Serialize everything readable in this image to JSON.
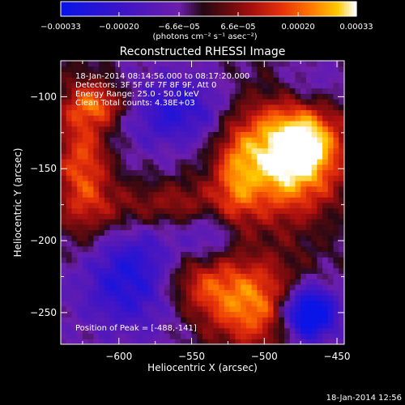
{
  "chart_data": {
    "type": "heatmap",
    "title": "Reconstructed RHESSI Image",
    "xlabel": "Heliocentric X (arcsec)",
    "ylabel": "Heliocentric Y (arcsec)",
    "xlim": [
      -640,
      -445
    ],
    "ylim": [
      -272,
      -75
    ],
    "x_ticks": [
      -600,
      -550,
      -500,
      -450
    ],
    "x_tick_labels": [
      "−600",
      "−550",
      "−500",
      "−450"
    ],
    "y_ticks": [
      -100,
      -150,
      -200,
      -250
    ],
    "y_tick_labels": [
      "−100",
      "−150",
      "−200",
      "−250"
    ],
    "colorbar": {
      "range": [
        -0.00033,
        0.00033
      ],
      "tick_labels": [
        "−0.00033",
        "−0.00020",
        "−6.6e−05",
        "6.6e−05",
        "0.00020",
        "0.00033"
      ],
      "unit_label": "(photons cm⁻² s⁻¹ asec⁻²)",
      "colors": [
        "#0a14e6",
        "#3a10c8",
        "#6a1aa8",
        "#2a0810",
        "#5a0a10",
        "#a01010",
        "#e03010",
        "#ff7000",
        "#ffc000",
        "#ffffff"
      ]
    },
    "annotations": {
      "time": "18-Jan-2014 08:14:56.000 to 08:17:20.000",
      "detectors": "Detectors: 3F 5F 6F 7F 8F 9F, Att 0",
      "energy": "Energy Range: 25.0 - 50.0 keV",
      "clean": "Clean     Total counts: 4.38E+03",
      "peak": "Position of Peak = [-488,-141]"
    },
    "peak": [
      -488,
      -141
    ],
    "grid": false
  },
  "footer": {
    "timestamp": "18-Jan-2014 12:56"
  },
  "colors": {
    "background": "#000000",
    "text": "#ffffff"
  }
}
